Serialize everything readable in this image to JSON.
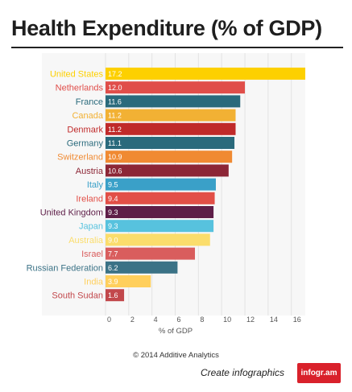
{
  "title": "Health Expenditure (% of GDP)",
  "credit": "© 2014 Additive Analytics",
  "footer": {
    "cta": "Create infographics",
    "brand": "infogr.am"
  },
  "chart_data": {
    "type": "bar",
    "orientation": "horizontal",
    "title": "Health Expenditure (% of GDP)",
    "xlabel": "% of GDP",
    "ylabel": "",
    "xlim": [
      0,
      17.2
    ],
    "xticks": [
      0,
      2,
      4,
      6,
      8,
      10,
      12,
      14,
      16
    ],
    "grid": true,
    "legend": "none",
    "categories": [
      "United States",
      "Netherlands",
      "France",
      "Canada",
      "Denmark",
      "Germany",
      "Switzerland",
      "Austria",
      "Italy",
      "Ireland",
      "United Kingdom",
      "Japan",
      "Australia",
      "Israel",
      "Russian Federation",
      "India",
      "South Sudan"
    ],
    "values": [
      17.2,
      12.0,
      11.6,
      11.2,
      11.2,
      11.1,
      10.9,
      10.6,
      9.5,
      9.4,
      9.3,
      9.3,
      9.0,
      7.7,
      6.2,
      3.9,
      1.6
    ],
    "value_labels": [
      "17.2",
      "12.0",
      "11.6",
      "11.2",
      "11.2",
      "11.1",
      "10.9",
      "10.6",
      "9.5",
      "9.4",
      "9.3",
      "9.3",
      "9.0",
      "7.7",
      "6.2",
      "3.9",
      "1.6"
    ],
    "colors": [
      "#fdd000",
      "#e04e4a",
      "#2a6a7c",
      "#f2b134",
      "#c02a2a",
      "#2a6a7c",
      "#f08a32",
      "#8c2636",
      "#3aa0c8",
      "#e24f47",
      "#5e1e48",
      "#57c2de",
      "#fbdd6c",
      "#d95d5d",
      "#3b7286",
      "#ffcf5c",
      "#c2484c"
    ]
  }
}
